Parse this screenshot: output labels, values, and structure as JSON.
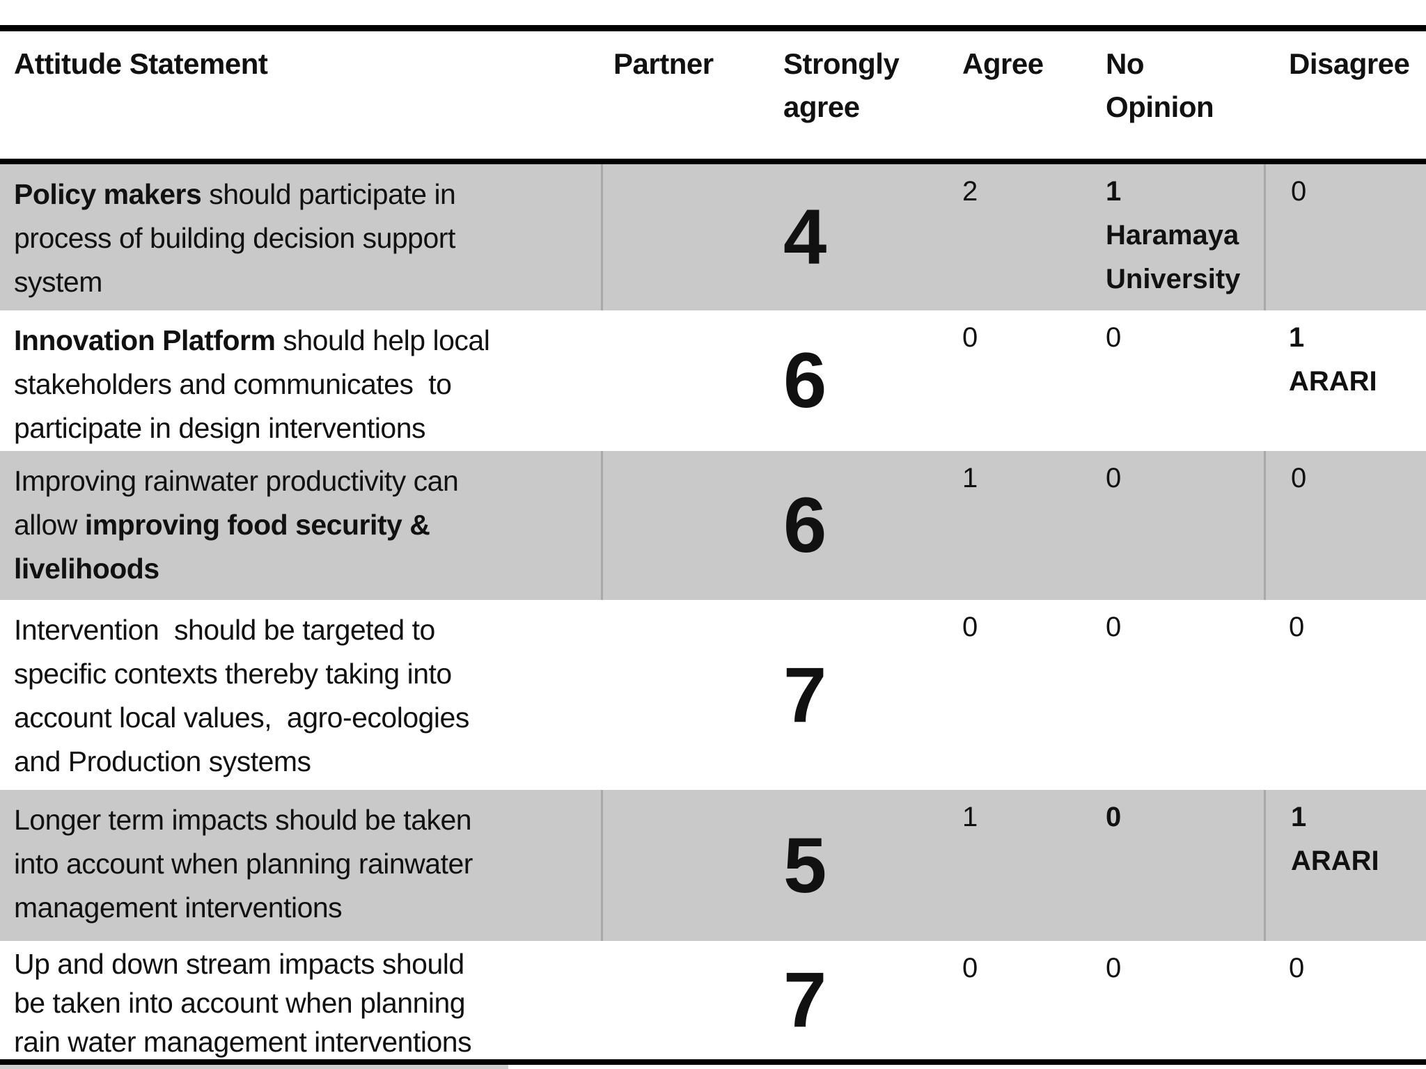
{
  "colors": {
    "row_shade": "#c9c9c9",
    "table_border": "#000000",
    "cell_divider": "#a8a8a8",
    "text": "#111111"
  },
  "table": {
    "headers": [
      {
        "id": "attitude-statement",
        "lines": [
          "Attitude Statement"
        ]
      },
      {
        "id": "partner",
        "lines": [
          "Partner"
        ]
      },
      {
        "id": "strongly-agree",
        "lines": [
          "Strongly",
          "agree"
        ]
      },
      {
        "id": "agree",
        "lines": [
          "Agree"
        ]
      },
      {
        "id": "no-opinion",
        "lines": [
          "No",
          "Opinion"
        ]
      },
      {
        "id": "disagree",
        "lines": [
          "Disagree"
        ]
      }
    ],
    "rows": [
      {
        "shaded": true,
        "statement_lines": [
          [
            {
              "t": "Policy makers",
              "b": true
            },
            {
              "t": " should participate in",
              "b": false
            }
          ],
          [
            {
              "t": "process of building decision support",
              "b": false
            }
          ],
          [
            {
              "t": "system",
              "b": false
            }
          ]
        ],
        "partner": "",
        "strongly_agree": "4",
        "agree": {
          "lines": [
            "2"
          ],
          "bold": false
        },
        "no_opinion": {
          "lines": [
            "1",
            "Haramaya",
            "University"
          ],
          "bold": true
        },
        "disagree": {
          "lines": [
            "0"
          ],
          "bold": false
        }
      },
      {
        "shaded": false,
        "statement_lines": [
          [
            {
              "t": "Innovation Platform",
              "b": true
            },
            {
              "t": " should help local",
              "b": false
            }
          ],
          [
            {
              "t": "stakeholders and communicates  to",
              "b": false
            }
          ],
          [
            {
              "t": "participate in design interventions",
              "b": false
            }
          ]
        ],
        "partner": "",
        "strongly_agree": "6",
        "agree": {
          "lines": [
            "0"
          ],
          "bold": false
        },
        "no_opinion": {
          "lines": [
            "0"
          ],
          "bold": false
        },
        "disagree": {
          "lines": [
            "1",
            "ARARI"
          ],
          "bold": true
        }
      },
      {
        "shaded": true,
        "statement_lines": [
          [
            {
              "t": "Improving rainwater productivity can",
              "b": false
            }
          ],
          [
            {
              "t": "allow ",
              "b": false
            },
            {
              "t": "improving food security &",
              "b": true
            }
          ],
          [
            {
              "t": "livelihoods",
              "b": true
            }
          ]
        ],
        "partner": "",
        "strongly_agree": "6",
        "agree": {
          "lines": [
            "1"
          ],
          "bold": false
        },
        "no_opinion": {
          "lines": [
            "0"
          ],
          "bold": false
        },
        "disagree": {
          "lines": [
            "0"
          ],
          "bold": false
        }
      },
      {
        "shaded": false,
        "statement_lines": [
          [
            {
              "t": "Intervention  should be targeted to",
              "b": false
            }
          ],
          [
            {
              "t": "specific contexts thereby taking into",
              "b": false
            }
          ],
          [
            {
              "t": "account local values,  agro-ecologies",
              "b": false
            }
          ],
          [
            {
              "t": "and Production systems",
              "b": false
            }
          ]
        ],
        "partner": "",
        "strongly_agree": "7",
        "agree": {
          "lines": [
            "0"
          ],
          "bold": false
        },
        "no_opinion": {
          "lines": [
            "0"
          ],
          "bold": false
        },
        "disagree": {
          "lines": [
            "0"
          ],
          "bold": false
        }
      },
      {
        "shaded": true,
        "statement_lines": [
          [
            {
              "t": "Longer term impacts should be taken",
              "b": false
            }
          ],
          [
            {
              "t": "into account when planning rainwater",
              "b": false
            }
          ],
          [
            {
              "t": "management interventions",
              "b": false
            }
          ]
        ],
        "partner": "",
        "strongly_agree": "5",
        "agree": {
          "lines": [
            "1"
          ],
          "bold": false
        },
        "no_opinion": {
          "lines": [
            "0"
          ],
          "bold": true
        },
        "disagree": {
          "lines": [
            "1",
            "ARARI"
          ],
          "bold": true
        }
      },
      {
        "shaded": false,
        "statement_lines": [
          [
            {
              "t": "Up and down stream impacts should",
              "b": false
            }
          ],
          [
            {
              "t": "be taken into account when planning",
              "b": false
            }
          ],
          [
            {
              "t": "rain water management interventions",
              "b": false
            }
          ]
        ],
        "partner": "",
        "strongly_agree": "7",
        "agree": {
          "lines": [
            "0"
          ],
          "bold": false
        },
        "no_opinion": {
          "lines": [
            "0"
          ],
          "bold": false
        },
        "disagree": {
          "lines": [
            "0"
          ],
          "bold": false
        }
      }
    ]
  }
}
